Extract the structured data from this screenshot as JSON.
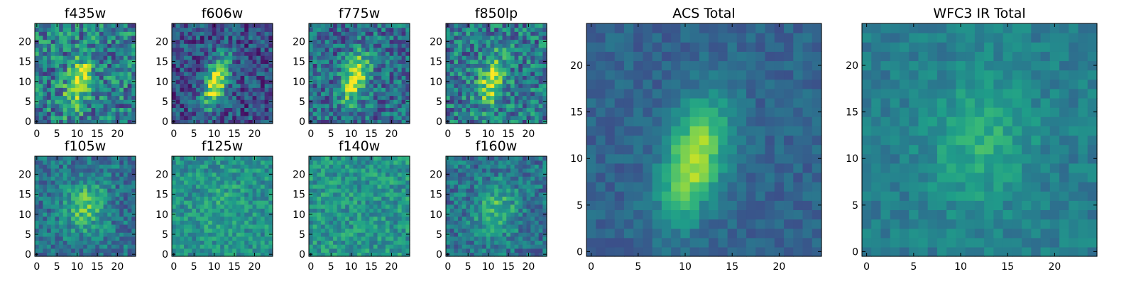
{
  "chart_data": [
    {
      "type": "heatmap",
      "title": "f435w",
      "xlim": [
        -0.5,
        24.5
      ],
      "ylim": [
        -0.5,
        24.5
      ],
      "xticks": [
        0,
        5,
        10,
        15,
        20
      ],
      "yticks": [
        0,
        5,
        10,
        15,
        20
      ],
      "colormap": "viridis",
      "grid": false,
      "blob": {
        "center": [
          10.5,
          10
        ],
        "sigma": [
          2,
          4.5
        ],
        "peak": 0.9,
        "noise": 0.28,
        "baseline": 0.42,
        "tilt": 0.7
      },
      "seed": 11
    },
    {
      "type": "heatmap",
      "title": "f606w",
      "xlim": [
        -0.5,
        24.5
      ],
      "ylim": [
        -0.5,
        24.5
      ],
      "xticks": [
        0,
        5,
        10,
        15,
        20
      ],
      "yticks": [
        0,
        5,
        10,
        15,
        20
      ],
      "colormap": "viridis",
      "grid": false,
      "blob": {
        "center": [
          10.5,
          10
        ],
        "sigma": [
          2,
          4.5
        ],
        "peak": 0.95,
        "noise": 0.22,
        "baseline": 0.25,
        "tilt": 0.7
      },
      "seed": 23
    },
    {
      "type": "heatmap",
      "title": "f775w",
      "xlim": [
        -0.5,
        24.5
      ],
      "ylim": [
        -0.5,
        24.5
      ],
      "xticks": [
        0,
        5,
        10,
        15,
        20
      ],
      "yticks": [
        0,
        5,
        10,
        15,
        20
      ],
      "colormap": "viridis",
      "grid": false,
      "blob": {
        "center": [
          11,
          11
        ],
        "sigma": [
          2.2,
          4.5
        ],
        "peak": 0.9,
        "noise": 0.24,
        "baseline": 0.35,
        "tilt": 0.6
      },
      "seed": 37
    },
    {
      "type": "heatmap",
      "title": "f850lp",
      "xlim": [
        -0.5,
        24.5
      ],
      "ylim": [
        -0.5,
        24.5
      ],
      "xticks": [
        0,
        5,
        10,
        15,
        20
      ],
      "yticks": [
        0,
        5,
        10,
        15,
        20
      ],
      "colormap": "viridis",
      "grid": false,
      "blob": {
        "center": [
          11,
          10.5
        ],
        "sigma": [
          2.2,
          4.5
        ],
        "peak": 0.85,
        "noise": 0.26,
        "baseline": 0.4,
        "tilt": 0.6
      },
      "seed": 41
    },
    {
      "type": "heatmap",
      "title": "f105w",
      "xlim": [
        -0.5,
        24.5
      ],
      "ylim": [
        -0.5,
        24.5
      ],
      "xticks": [
        0,
        5,
        10,
        15,
        20
      ],
      "yticks": [
        0,
        5,
        10,
        15,
        20
      ],
      "colormap": "viridis",
      "grid": false,
      "blob": {
        "center": [
          12,
          12
        ],
        "sigma": [
          3.5,
          4.5
        ],
        "peak": 0.7,
        "noise": 0.18,
        "baseline": 0.38,
        "tilt": 0.2
      },
      "seed": 53
    },
    {
      "type": "heatmap",
      "title": "f125w",
      "xlim": [
        -0.5,
        24.5
      ],
      "ylim": [
        -0.5,
        24.5
      ],
      "xticks": [
        0,
        5,
        10,
        15,
        20
      ],
      "yticks": [
        0,
        5,
        10,
        15,
        20
      ],
      "colormap": "viridis",
      "grid": false,
      "blob": {
        "center": [
          12,
          12
        ],
        "sigma": [
          4,
          5
        ],
        "peak": 0.55,
        "noise": 0.16,
        "baseline": 0.5,
        "tilt": 0.2
      },
      "seed": 61
    },
    {
      "type": "heatmap",
      "title": "f140w",
      "xlim": [
        -0.5,
        24.5
      ],
      "ylim": [
        -0.5,
        24.5
      ],
      "xticks": [
        0,
        5,
        10,
        15,
        20
      ],
      "yticks": [
        0,
        5,
        10,
        15,
        20
      ],
      "colormap": "viridis",
      "grid": false,
      "blob": {
        "center": [
          12,
          12
        ],
        "sigma": [
          4,
          5
        ],
        "peak": 0.5,
        "noise": 0.17,
        "baseline": 0.52,
        "tilt": 0.2
      },
      "seed": 71
    },
    {
      "type": "heatmap",
      "title": "f160w",
      "xlim": [
        -0.5,
        24.5
      ],
      "ylim": [
        -0.5,
        24.5
      ],
      "xticks": [
        0,
        5,
        10,
        15,
        20
      ],
      "yticks": [
        0,
        5,
        10,
        15,
        20
      ],
      "colormap": "viridis",
      "grid": false,
      "blob": {
        "center": [
          12,
          11
        ],
        "sigma": [
          3.5,
          4.5
        ],
        "peak": 0.65,
        "noise": 0.18,
        "baseline": 0.38,
        "tilt": 0.2
      },
      "seed": 83
    },
    {
      "type": "heatmap",
      "title": "ACS Total",
      "xlim": [
        -0.5,
        24.5
      ],
      "ylim": [
        -0.5,
        24.5
      ],
      "xticks": [
        0,
        5,
        10,
        15,
        20
      ],
      "yticks": [
        0,
        5,
        10,
        15,
        20
      ],
      "colormap": "viridis",
      "grid": false,
      "blob": {
        "center": [
          11,
          10
        ],
        "sigma": [
          2.2,
          4.5
        ],
        "peak": 0.85,
        "noise": 0.08,
        "baseline": 0.32,
        "tilt": 0.7
      },
      "seed": 97
    },
    {
      "type": "heatmap",
      "title": "WFC3 IR Total",
      "xlim": [
        -0.5,
        24.5
      ],
      "ylim": [
        -0.5,
        24.5
      ],
      "xticks": [
        0,
        5,
        10,
        15,
        20
      ],
      "yticks": [
        0,
        5,
        10,
        15,
        20
      ],
      "colormap": "viridis",
      "grid": false,
      "blob": {
        "center": [
          12,
          12
        ],
        "sigma": [
          3.8,
          5
        ],
        "peak": 0.6,
        "noise": 0.09,
        "baseline": 0.42,
        "tilt": 0.2
      },
      "seed": 103
    }
  ]
}
